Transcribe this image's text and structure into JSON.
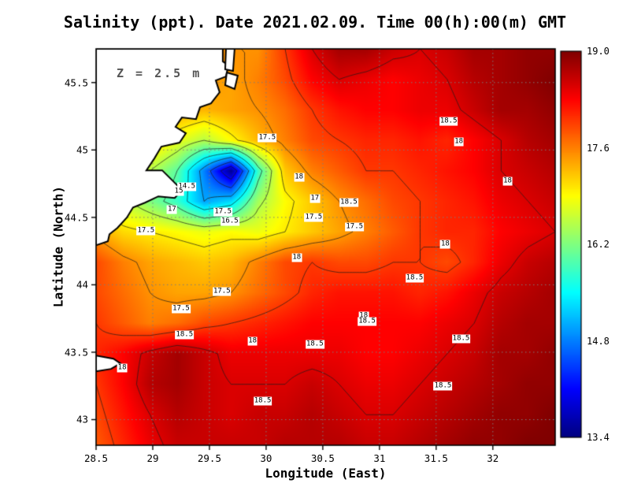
{
  "title": "Salinity (ppt). Date 2021.02.09. Time 00(h):00(m) GMT",
  "annotation": "Z = 2.5 m",
  "axes": {
    "x_label": "Longitude (East)",
    "y_label": "Latitude (North)",
    "x_ticks": [
      {
        "value": 28.5,
        "label": "28.5"
      },
      {
        "value": 29,
        "label": "29"
      },
      {
        "value": 29.5,
        "label": "29.5"
      },
      {
        "value": 30,
        "label": "30"
      },
      {
        "value": 30.5,
        "label": "30.5"
      },
      {
        "value": 31,
        "label": "31"
      },
      {
        "value": 31.5,
        "label": "31.5"
      },
      {
        "value": 32,
        "label": "32"
      }
    ],
    "y_ticks": [
      {
        "value": 43,
        "label": "43"
      },
      {
        "value": 43.5,
        "label": "43.5"
      },
      {
        "value": 44,
        "label": "44"
      },
      {
        "value": 44.5,
        "label": "44.5"
      },
      {
        "value": 45,
        "label": "45"
      },
      {
        "value": 45.5,
        "label": "45.5"
      }
    ],
    "grid": "dotted"
  },
  "colorbar": {
    "min": 13.4,
    "max": 19.0,
    "colormap": "jet",
    "ticks": [
      {
        "value": 19.0,
        "label": "19.0"
      },
      {
        "value": 17.6,
        "label": "17.6"
      },
      {
        "value": 16.2,
        "label": "16.2"
      },
      {
        "value": 14.8,
        "label": "14.8"
      },
      {
        "value": 13.4,
        "label": "13.4"
      }
    ]
  },
  "chart_data": {
    "type": "heatmap",
    "quantity": "Salinity (ppt)",
    "depth_m": 2.5,
    "date": "2021.02.09",
    "time": "00(h):00(m) GMT",
    "lon_range": [
      28.5,
      32.55
    ],
    "lat_range": [
      42.81,
      45.75
    ],
    "lons": [
      28.5,
      28.74,
      28.98,
      29.21,
      29.45,
      29.69,
      29.93,
      30.17,
      30.4,
      30.64,
      30.88,
      31.12,
      31.36,
      31.59,
      31.83,
      32.07,
      32.31,
      32.55
    ],
    "lats": [
      45.75,
      45.52,
      45.3,
      45.07,
      44.85,
      44.62,
      44.4,
      44.17,
      43.94,
      43.72,
      43.49,
      43.26,
      43.04,
      42.81
    ],
    "values": [
      [
        17.5,
        17.5,
        17.5,
        17.5,
        17.5,
        17.5,
        17.5,
        18.0,
        18.5,
        18.8,
        18.8,
        18.6,
        18.5,
        18.6,
        18.8,
        18.8,
        18.9,
        18.9
      ],
      [
        17.5,
        17.5,
        17.5,
        17.5,
        17.5,
        17.4,
        17.6,
        17.9,
        18.3,
        18.5,
        18.4,
        18.3,
        18.4,
        18.5,
        18.7,
        18.8,
        18.9,
        19.0
      ],
      [
        17.4,
        17.4,
        17.4,
        17.4,
        17.3,
        17.4,
        17.5,
        17.7,
        18.0,
        18.2,
        18.3,
        18.3,
        18.4,
        18.4,
        18.6,
        18.8,
        18.8,
        18.9
      ],
      [
        17.3,
        17.3,
        17.2,
        16.8,
        16.5,
        16.9,
        17.3,
        17.6,
        17.9,
        18.0,
        18.1,
        18.1,
        18.2,
        18.1,
        18.3,
        18.5,
        18.7,
        18.8
      ],
      [
        17.0,
        17.0,
        16.5,
        16.0,
        14.8,
        13.5,
        15.8,
        17.2,
        17.6,
        17.8,
        18.0,
        18.0,
        18.1,
        18.2,
        18.3,
        18.5,
        18.6,
        18.7
      ],
      [
        17.0,
        16.6,
        16.2,
        15.8,
        15.0,
        15.3,
        16.4,
        16.9,
        17.2,
        17.5,
        17.7,
        17.9,
        18.0,
        18.1,
        18.2,
        18.4,
        18.5,
        18.6
      ],
      [
        17.4,
        17.1,
        17.0,
        16.9,
        16.8,
        16.9,
        16.8,
        17.0,
        17.2,
        17.4,
        17.6,
        17.8,
        18.0,
        18.1,
        18.1,
        18.3,
        18.4,
        18.5
      ],
      [
        17.9,
        17.6,
        17.4,
        17.3,
        17.2,
        17.3,
        17.6,
        17.9,
        18.0,
        17.9,
        17.9,
        18.0,
        18.0,
        17.9,
        18.1,
        18.4,
        18.6,
        18.7
      ],
      [
        17.9,
        17.7,
        17.5,
        17.4,
        17.4,
        17.5,
        17.7,
        17.9,
        18.1,
        18.2,
        18.2,
        18.2,
        18.1,
        18.2,
        18.4,
        18.6,
        18.7,
        18.8
      ],
      [
        18.0,
        17.8,
        17.6,
        17.7,
        17.9,
        18.0,
        18.1,
        18.2,
        18.3,
        18.3,
        18.3,
        18.3,
        18.3,
        18.4,
        18.5,
        18.7,
        18.8,
        18.8
      ],
      [
        18.1,
        18.3,
        18.6,
        18.8,
        18.6,
        18.4,
        18.4,
        18.4,
        18.4,
        18.4,
        18.3,
        18.3,
        18.4,
        18.5,
        18.6,
        18.8,
        18.8,
        18.9
      ],
      [
        18.0,
        18.3,
        18.7,
        18.8,
        18.6,
        18.5,
        18.5,
        18.5,
        18.6,
        18.5,
        18.4,
        18.4,
        18.5,
        18.6,
        18.7,
        18.8,
        18.9,
        18.9
      ],
      [
        17.9,
        18.2,
        18.5,
        18.7,
        18.6,
        18.5,
        18.6,
        18.6,
        18.7,
        18.6,
        18.5,
        18.5,
        18.6,
        18.7,
        18.8,
        18.9,
        18.9,
        19.0
      ],
      [
        17.8,
        18.1,
        18.4,
        18.6,
        18.6,
        18.6,
        18.6,
        18.7,
        18.7,
        18.7,
        18.6,
        18.6,
        18.7,
        18.8,
        18.9,
        18.9,
        19.0,
        19.0
      ]
    ],
    "contour_levels": [
      14,
      14.5,
      15,
      15.5,
      16,
      16.5,
      17,
      17.5,
      18,
      18.5
    ],
    "contour_labels": [
      {
        "text": "17.5",
        "lon": 30.01,
        "lat": 45.09
      },
      {
        "text": "18.5",
        "lon": 31.61,
        "lat": 45.21
      },
      {
        "text": "18",
        "lon": 31.7,
        "lat": 45.06
      },
      {
        "text": "18",
        "lon": 30.29,
        "lat": 44.8
      },
      {
        "text": "18",
        "lon": 32.13,
        "lat": 44.77
      },
      {
        "text": "14.5",
        "lon": 29.3,
        "lat": 44.73
      },
      {
        "text": "15",
        "lon": 29.23,
        "lat": 44.69
      },
      {
        "text": "17",
        "lon": 30.43,
        "lat": 44.64
      },
      {
        "text": "18.5",
        "lon": 30.73,
        "lat": 44.61
      },
      {
        "text": "17",
        "lon": 29.17,
        "lat": 44.56
      },
      {
        "text": "17.5",
        "lon": 29.62,
        "lat": 44.54
      },
      {
        "text": "16.5",
        "lon": 29.68,
        "lat": 44.47
      },
      {
        "text": "17.5",
        "lon": 30.42,
        "lat": 44.5
      },
      {
        "text": "17.5",
        "lon": 30.78,
        "lat": 44.43
      },
      {
        "text": "17.5",
        "lon": 28.94,
        "lat": 44.4
      },
      {
        "text": "18",
        "lon": 31.58,
        "lat": 44.3
      },
      {
        "text": "18",
        "lon": 30.27,
        "lat": 44.2
      },
      {
        "text": "18.5",
        "lon": 31.31,
        "lat": 44.05
      },
      {
        "text": "17.5",
        "lon": 29.61,
        "lat": 43.95
      },
      {
        "text": "17.5",
        "lon": 29.25,
        "lat": 43.82
      },
      {
        "text": "18",
        "lon": 30.86,
        "lat": 43.77
      },
      {
        "text": "18.5",
        "lon": 30.89,
        "lat": 43.73
      },
      {
        "text": "18.5",
        "lon": 31.72,
        "lat": 43.6
      },
      {
        "text": "18.5",
        "lon": 29.28,
        "lat": 43.63
      },
      {
        "text": "18",
        "lon": 29.88,
        "lat": 43.58
      },
      {
        "text": "18.5",
        "lon": 30.43,
        "lat": 43.56
      },
      {
        "text": "18",
        "lon": 28.73,
        "lat": 43.38
      },
      {
        "text": "18.5",
        "lon": 31.56,
        "lat": 43.25
      },
      {
        "text": "18.5",
        "lon": 29.97,
        "lat": 43.14
      }
    ],
    "land_polygons": [
      [
        [
          28.5,
          45.75
        ],
        [
          29.618,
          45.75
        ],
        [
          29.618,
          45.657
        ],
        [
          29.667,
          45.627
        ],
        [
          29.646,
          45.545
        ],
        [
          29.556,
          45.516
        ],
        [
          29.59,
          45.428
        ],
        [
          29.514,
          45.346
        ],
        [
          29.417,
          45.317
        ],
        [
          29.382,
          45.229
        ],
        [
          29.257,
          45.241
        ],
        [
          29.201,
          45.171
        ],
        [
          29.292,
          45.124
        ],
        [
          29.236,
          45.054
        ],
        [
          29.076,
          45.025
        ],
        [
          29.014,
          44.937
        ],
        [
          28.944,
          44.849
        ],
        [
          29.083,
          44.849
        ],
        [
          29.174,
          44.773
        ],
        [
          29.257,
          44.703
        ],
        [
          29.194,
          44.644
        ],
        [
          29.049,
          44.656
        ],
        [
          28.931,
          44.609
        ],
        [
          28.826,
          44.574
        ],
        [
          28.771,
          44.498
        ],
        [
          28.688,
          44.422
        ],
        [
          28.618,
          44.375
        ],
        [
          28.604,
          44.322
        ],
        [
          28.5,
          44.293
        ]
      ],
      [
        [
          29.646,
          45.75
        ],
        [
          29.722,
          45.75
        ],
        [
          29.708,
          45.586
        ],
        [
          29.639,
          45.598
        ]
      ],
      [
        [
          29.653,
          45.575
        ],
        [
          29.75,
          45.551
        ],
        [
          29.722,
          45.452
        ],
        [
          29.639,
          45.481
        ]
      ],
      [
        [
          28.5,
          43.475
        ],
        [
          28.653,
          43.452
        ],
        [
          28.715,
          43.417
        ],
        [
          28.632,
          43.376
        ],
        [
          28.5,
          43.358
        ]
      ]
    ],
    "colors": {
      "land": "#ffffff",
      "coast": "#000000",
      "grid": "#7d7d7d",
      "contour": "#1a1a1a"
    }
  }
}
